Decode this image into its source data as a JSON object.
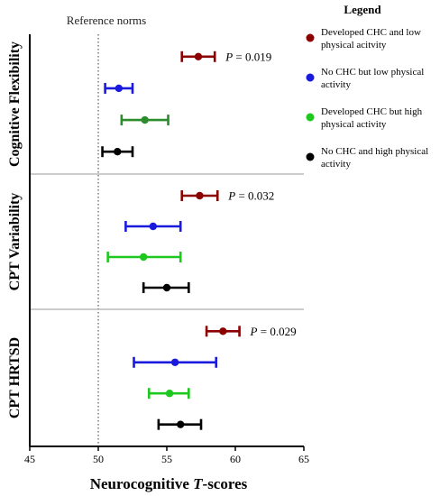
{
  "chart_data": {
    "type": "dot-whisker",
    "reference_label": "Reference norms",
    "reference_x": 50,
    "xlabel_prefix": "Neurocognitive ",
    "xlabel_italic": "T",
    "xlabel_suffix": "-scores",
    "xlim": [
      45,
      65
    ],
    "xticks": [
      45,
      50,
      55,
      60,
      65
    ],
    "legend": {
      "title": "Legend",
      "entries": [
        {
          "lines": [
            "Developed CHC and low",
            "physical acitvity"
          ],
          "color": "#8b0000"
        },
        {
          "lines": [
            "No CHC but low physical",
            "activity"
          ],
          "color": "#1a1adc"
        },
        {
          "lines": [
            "Developed CHC but high",
            "physical activity"
          ],
          "color": "#1ec81e"
        },
        {
          "lines": [
            "No CHC and high physical",
            "activity"
          ],
          "color": "#000000"
        }
      ]
    },
    "panels": [
      {
        "label": "Cognitive Flexibility",
        "p_text": " = 0.019",
        "groups": [
          {
            "mean": 57.3,
            "low": 56.1,
            "high": 58.5,
            "color": "#8b0000"
          },
          {
            "mean": 51.5,
            "low": 50.5,
            "high": 52.5,
            "color": "#1a1adc"
          },
          {
            "mean": 53.4,
            "low": 51.7,
            "high": 55.1,
            "color": "#2a8c2a"
          },
          {
            "mean": 51.4,
            "low": 50.3,
            "high": 52.5,
            "color": "#000000"
          }
        ]
      },
      {
        "label": "CPT Variability",
        "p_text": " = 0.032",
        "groups": [
          {
            "mean": 57.4,
            "low": 56.1,
            "high": 58.7,
            "color": "#8b0000"
          },
          {
            "mean": 54.0,
            "low": 52.0,
            "high": 56.0,
            "color": "#1a1adc"
          },
          {
            "mean": 53.3,
            "low": 50.7,
            "high": 56.0,
            "color": "#1ec81e"
          },
          {
            "mean": 55.0,
            "low": 53.3,
            "high": 56.6,
            "color": "#000000"
          }
        ]
      },
      {
        "label": "CPT HRTSD",
        "p_text": " = 0.029",
        "groups": [
          {
            "mean": 59.1,
            "low": 57.9,
            "high": 60.3,
            "color": "#8b0000"
          },
          {
            "mean": 55.6,
            "low": 52.6,
            "high": 58.6,
            "color": "#1a1adc"
          },
          {
            "mean": 55.2,
            "low": 53.7,
            "high": 56.6,
            "color": "#1ec81e"
          },
          {
            "mean": 56.0,
            "low": 54.4,
            "high": 57.5,
            "color": "#000000"
          }
        ]
      }
    ]
  }
}
